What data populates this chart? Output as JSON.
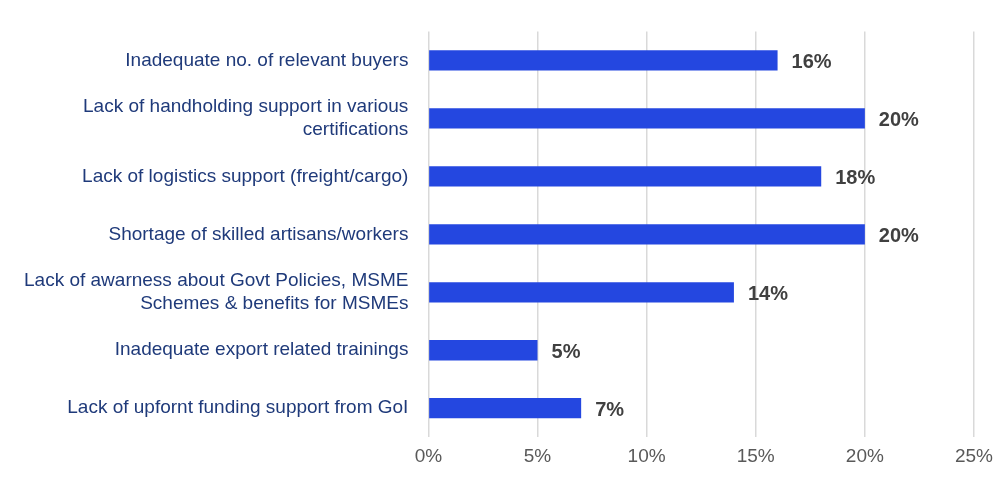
{
  "chart_data": {
    "type": "bar",
    "orientation": "horizontal",
    "categories": [
      "Inadequate no. of relevant buyers",
      "Lack of handholding support in various certifications",
      "Lack of logistics support (freight/cargo)",
      "Shortage of skilled artisans/workers",
      "Lack of awarness about Govt Policies, MSME Schemes & benefits for MSMEs",
      "Inadequate export related trainings",
      "Lack of upfornt funding support from GoI"
    ],
    "values": [
      16,
      20,
      18,
      20,
      14,
      5,
      7
    ],
    "value_labels": [
      "16%",
      "20%",
      "18%",
      "20%",
      "14%",
      "5%",
      "7%"
    ],
    "color": "#2447e0",
    "xlim": [
      0,
      25
    ],
    "xticks": [
      {
        "value": 0,
        "label": "0%"
      },
      {
        "value": 5,
        "label": "5%"
      },
      {
        "value": 10,
        "label": "10%"
      },
      {
        "value": 15,
        "label": "15%"
      },
      {
        "value": 20,
        "label": "20%"
      },
      {
        "value": 25,
        "label": "25%"
      }
    ],
    "grid": "x",
    "legend": false
  }
}
